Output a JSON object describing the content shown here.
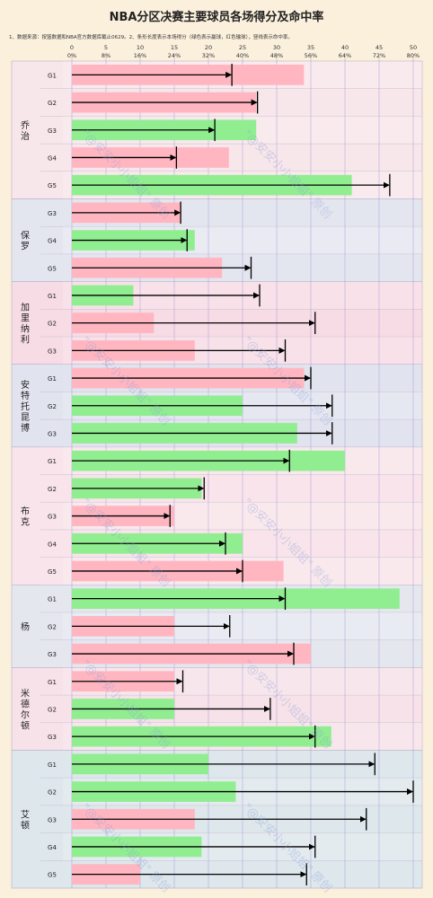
{
  "title": "NBA分区决赛主要球员各场得分及命中率",
  "note": "1、数据来源：按篮数据和NBA官方数据库截止0629。2、条形长度表示本场得分（绿色表示赢球，红色输球），竖线表示命中率。",
  "watermark": "\"@安安小小姐姐\" 原创",
  "colors": {
    "win": "#90ee90",
    "loss": "#ffb6c1",
    "arrow": "#000000",
    "grid": "#9b8fd6",
    "band_alt": [
      "#f7e6ea",
      "#e4e6ef",
      "#f7dbe5",
      "#e1e3ee",
      "#f8e4ea",
      "#e5e7ef",
      "#f6e2e8",
      "#dde7ec"
    ]
  },
  "chart_data": {
    "type": "bar",
    "title": "NBA分区决赛主要球员各场得分及命中率",
    "x_ticks_points": [
      "0",
      "5",
      "10",
      "15",
      "20",
      "25",
      "30",
      "35",
      "40",
      "45",
      "50"
    ],
    "x_ticks_pct": [
      "0%",
      "8%",
      "16%",
      "24%",
      "32%",
      "40%",
      "48%",
      "56%",
      "64%",
      "72%",
      "80%"
    ],
    "points_range": [
      0,
      50
    ],
    "pct_range": [
      0,
      80
    ],
    "players": [
      {
        "name": "乔治",
        "games": [
          {
            "game": "G1",
            "points": 34,
            "pct": 37.5,
            "win": false
          },
          {
            "game": "G2",
            "points": 27,
            "pct": 43.5,
            "win": false
          },
          {
            "game": "G3",
            "points": 27,
            "pct": 33.5,
            "win": true
          },
          {
            "game": "G4",
            "points": 23,
            "pct": 24.5,
            "win": false
          },
          {
            "game": "G5",
            "points": 41,
            "pct": 74.5,
            "win": true
          }
        ]
      },
      {
        "name": "保罗",
        "games": [
          {
            "game": "G3",
            "points": 16,
            "pct": 25.5,
            "win": false
          },
          {
            "game": "G4",
            "points": 18,
            "pct": 27,
            "win": true
          },
          {
            "game": "G5",
            "points": 22,
            "pct": 42,
            "win": false
          }
        ]
      },
      {
        "name": "加里纳利",
        "games": [
          {
            "game": "G1",
            "points": 9,
            "pct": 44,
            "win": true
          },
          {
            "game": "G2",
            "points": 12,
            "pct": 57,
            "win": false
          },
          {
            "game": "G3",
            "points": 18,
            "pct": 50,
            "win": false
          }
        ]
      },
      {
        "name": "安特托昆博",
        "games": [
          {
            "game": "G1",
            "points": 34,
            "pct": 56,
            "win": false
          },
          {
            "game": "G2",
            "points": 25,
            "pct": 61,
            "win": true
          },
          {
            "game": "G3",
            "points": 33,
            "pct": 61,
            "win": true
          }
        ]
      },
      {
        "name": "布克",
        "games": [
          {
            "game": "G1",
            "points": 40,
            "pct": 51,
            "win": true
          },
          {
            "game": "G2",
            "points": 19,
            "pct": 31,
            "win": true
          },
          {
            "game": "G3",
            "points": 15,
            "pct": 23,
            "win": false
          },
          {
            "game": "G4",
            "points": 25,
            "pct": 36,
            "win": true
          },
          {
            "game": "G5",
            "points": 31,
            "pct": 40,
            "win": false
          }
        ]
      },
      {
        "name": "杨",
        "games": [
          {
            "game": "G1",
            "points": 48,
            "pct": 50,
            "win": true
          },
          {
            "game": "G2",
            "points": 15,
            "pct": 37,
            "win": false
          },
          {
            "game": "G3",
            "points": 35,
            "pct": 52,
            "win": false
          }
        ]
      },
      {
        "name": "米德尔顿",
        "games": [
          {
            "game": "G1",
            "points": 15,
            "pct": 26,
            "win": false
          },
          {
            "game": "G2",
            "points": 15,
            "pct": 46.5,
            "win": true
          },
          {
            "game": "G3",
            "points": 38,
            "pct": 57,
            "win": true
          }
        ]
      },
      {
        "name": "艾顿",
        "games": [
          {
            "game": "G1",
            "points": 20,
            "pct": 71,
            "win": true
          },
          {
            "game": "G2",
            "points": 24,
            "pct": 80,
            "win": true
          },
          {
            "game": "G3",
            "points": 18,
            "pct": 69,
            "win": false
          },
          {
            "game": "G4",
            "points": 19,
            "pct": 57,
            "win": true
          },
          {
            "game": "G5",
            "points": 10,
            "pct": 55,
            "win": false
          }
        ]
      }
    ]
  }
}
